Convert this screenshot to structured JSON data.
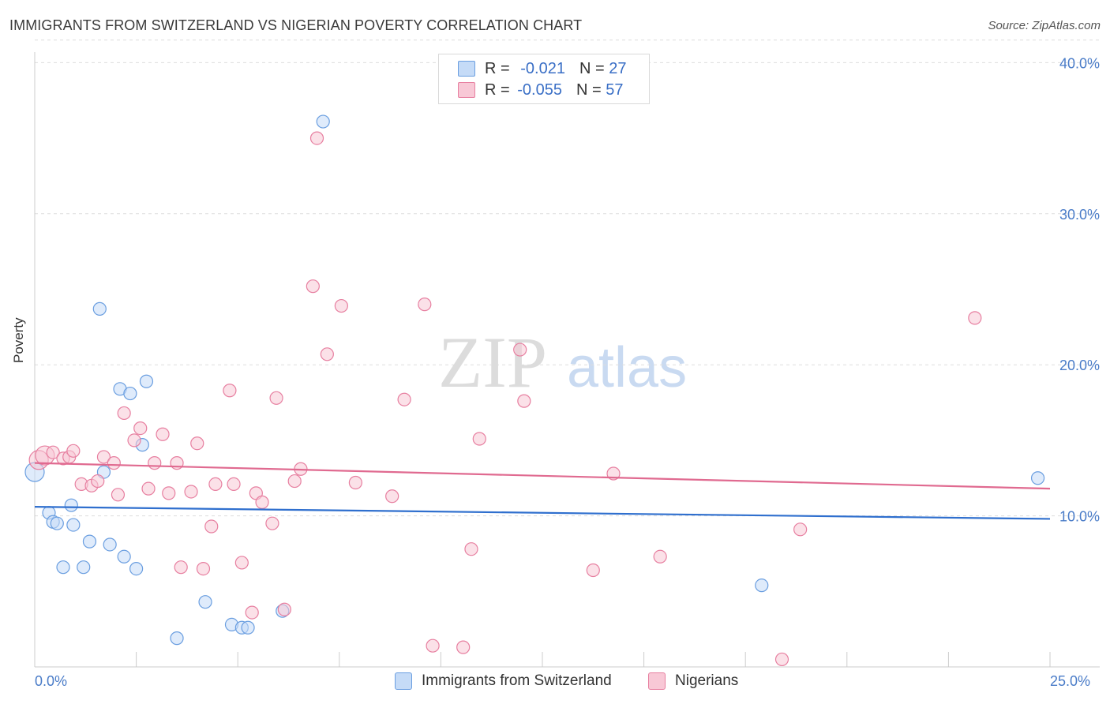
{
  "header": {
    "title": "IMMIGRANTS FROM SWITZERLAND VS NIGERIAN POVERTY CORRELATION CHART",
    "source": "Source: ZipAtlas.com"
  },
  "watermark": {
    "zip": "ZIP",
    "atlas": "atlas"
  },
  "legend_stats": [
    {
      "r_label": "R = ",
      "r_value": "-0.021",
      "n_label": "N = ",
      "n_value": "27",
      "color": "#a9c8f0"
    },
    {
      "r_label": "R = ",
      "r_value": "-0.055",
      "n_label": "N = ",
      "n_value": "57",
      "color": "#f5b6c8"
    }
  ],
  "chart_data": {
    "type": "scatter",
    "title": "IMMIGRANTS FROM SWITZERLAND VS NIGERIAN POVERTY CORRELATION CHART",
    "xlabel": "",
    "ylabel": "Poverty",
    "xlim": [
      0,
      25
    ],
    "ylim": [
      0,
      42
    ],
    "x_tick_labels": [
      "0.0%",
      "25.0%"
    ],
    "y_ticks": [
      10,
      20,
      30,
      40
    ],
    "y_tick_labels": [
      "10.0%",
      "20.0%",
      "30.0%",
      "40.0%"
    ],
    "grid": true,
    "series": [
      {
        "name": "Immigrants from Switzerland",
        "color": "#6a9ee0",
        "fill": "#c5dbf7",
        "trend": {
          "x": [
            0,
            25
          ],
          "y": [
            10.6,
            9.8
          ]
        },
        "points": [
          {
            "x": 0.0,
            "y": 12.9
          },
          {
            "x": 0.35,
            "y": 10.2
          },
          {
            "x": 0.45,
            "y": 9.6
          },
          {
            "x": 0.55,
            "y": 9.5
          },
          {
            "x": 0.7,
            "y": 6.6
          },
          {
            "x": 0.9,
            "y": 10.7
          },
          {
            "x": 0.95,
            "y": 9.4
          },
          {
            "x": 1.2,
            "y": 6.6
          },
          {
            "x": 1.35,
            "y": 8.3
          },
          {
            "x": 1.6,
            "y": 23.7
          },
          {
            "x": 1.7,
            "y": 12.9
          },
          {
            "x": 1.85,
            "y": 8.1
          },
          {
            "x": 2.1,
            "y": 18.4
          },
          {
            "x": 2.2,
            "y": 7.3
          },
          {
            "x": 2.35,
            "y": 18.1
          },
          {
            "x": 2.5,
            "y": 6.5
          },
          {
            "x": 2.65,
            "y": 14.7
          },
          {
            "x": 2.75,
            "y": 18.9
          },
          {
            "x": 3.5,
            "y": 1.9
          },
          {
            "x": 4.2,
            "y": 4.3
          },
          {
            "x": 4.85,
            "y": 2.8
          },
          {
            "x": 5.1,
            "y": 2.6
          },
          {
            "x": 5.25,
            "y": 2.6
          },
          {
            "x": 6.1,
            "y": 3.7
          },
          {
            "x": 7.1,
            "y": 36.1
          },
          {
            "x": 17.9,
            "y": 5.4
          },
          {
            "x": 24.7,
            "y": 12.5
          }
        ]
      },
      {
        "name": "Nigerians",
        "color": "#e77fa0",
        "fill": "#f8c8d6",
        "trend": {
          "x": [
            0,
            25
          ],
          "y": [
            13.5,
            11.8
          ]
        },
        "points": [
          {
            "x": 0.1,
            "y": 13.7
          },
          {
            "x": 0.25,
            "y": 14.0
          },
          {
            "x": 0.45,
            "y": 14.2
          },
          {
            "x": 0.7,
            "y": 13.8
          },
          {
            "x": 0.85,
            "y": 13.9
          },
          {
            "x": 0.95,
            "y": 14.3
          },
          {
            "x": 1.15,
            "y": 12.1
          },
          {
            "x": 1.4,
            "y": 12.0
          },
          {
            "x": 1.55,
            "y": 12.3
          },
          {
            "x": 1.7,
            "y": 13.9
          },
          {
            "x": 1.95,
            "y": 13.5
          },
          {
            "x": 2.05,
            "y": 11.4
          },
          {
            "x": 2.2,
            "y": 16.8
          },
          {
            "x": 2.45,
            "y": 15.0
          },
          {
            "x": 2.6,
            "y": 15.8
          },
          {
            "x": 2.8,
            "y": 11.8
          },
          {
            "x": 2.95,
            "y": 13.5
          },
          {
            "x": 3.15,
            "y": 15.4
          },
          {
            "x": 3.3,
            "y": 11.5
          },
          {
            "x": 3.5,
            "y": 13.5
          },
          {
            "x": 3.6,
            "y": 6.6
          },
          {
            "x": 3.85,
            "y": 11.6
          },
          {
            "x": 4.0,
            "y": 14.8
          },
          {
            "x": 4.15,
            "y": 6.5
          },
          {
            "x": 4.35,
            "y": 9.3
          },
          {
            "x": 4.45,
            "y": 12.1
          },
          {
            "x": 4.8,
            "y": 18.3
          },
          {
            "x": 4.9,
            "y": 12.1
          },
          {
            "x": 5.1,
            "y": 6.9
          },
          {
            "x": 5.35,
            "y": 3.6
          },
          {
            "x": 5.45,
            "y": 11.5
          },
          {
            "x": 5.6,
            "y": 10.9
          },
          {
            "x": 5.85,
            "y": 9.5
          },
          {
            "x": 5.95,
            "y": 17.8
          },
          {
            "x": 6.15,
            "y": 3.8
          },
          {
            "x": 6.4,
            "y": 12.3
          },
          {
            "x": 6.55,
            "y": 13.1
          },
          {
            "x": 6.85,
            "y": 25.2
          },
          {
            "x": 6.95,
            "y": 35.0
          },
          {
            "x": 7.2,
            "y": 20.7
          },
          {
            "x": 7.55,
            "y": 23.9
          },
          {
            "x": 7.9,
            "y": 12.2
          },
          {
            "x": 8.8,
            "y": 11.3
          },
          {
            "x": 9.1,
            "y": 17.7
          },
          {
            "x": 9.6,
            "y": 24.0
          },
          {
            "x": 9.8,
            "y": 1.4
          },
          {
            "x": 10.55,
            "y": 1.3
          },
          {
            "x": 10.75,
            "y": 7.8
          },
          {
            "x": 10.95,
            "y": 15.1
          },
          {
            "x": 11.95,
            "y": 21.0
          },
          {
            "x": 12.05,
            "y": 17.6
          },
          {
            "x": 13.75,
            "y": 6.4
          },
          {
            "x": 14.25,
            "y": 12.8
          },
          {
            "x": 15.4,
            "y": 7.3
          },
          {
            "x": 18.4,
            "y": 0.5
          },
          {
            "x": 18.85,
            "y": 9.1
          },
          {
            "x": 23.15,
            "y": 23.1
          }
        ]
      }
    ]
  }
}
